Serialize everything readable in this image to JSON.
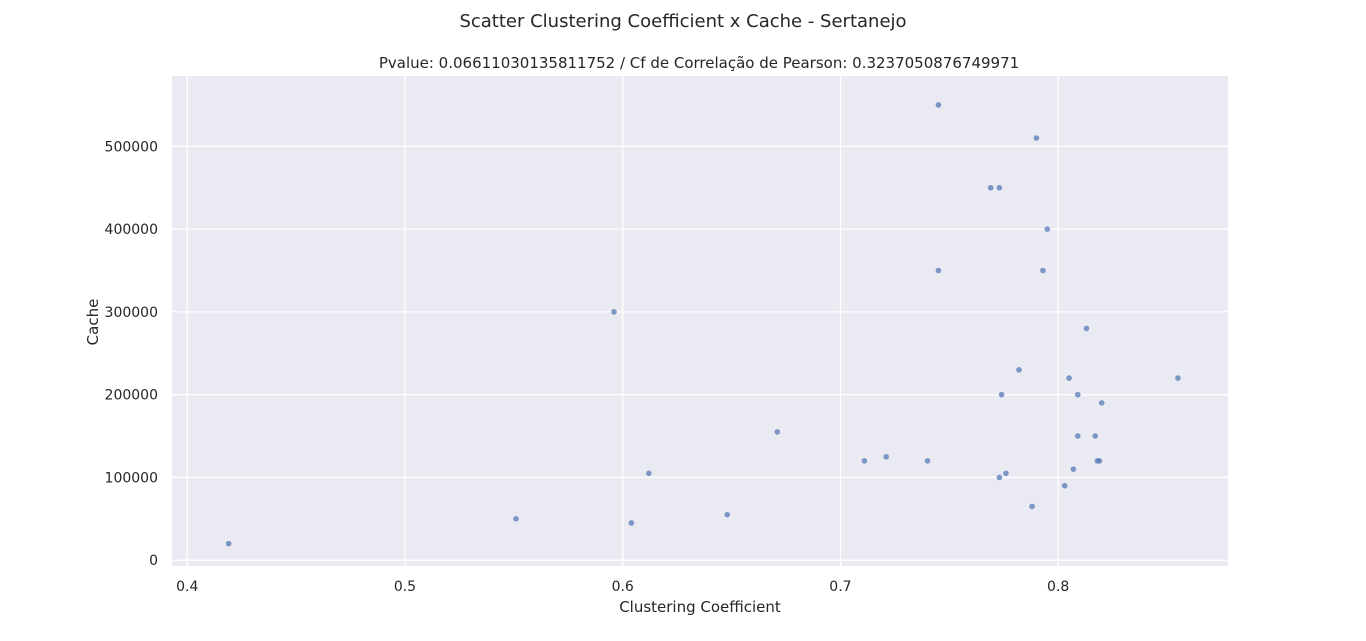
{
  "chart_data": {
    "type": "scatter",
    "title": "Scatter Clustering Coefficient x Cache - Sertanejo",
    "subtitle": "Pvalue: 0.06611030135811752 / Cf de Correlação de Pearson: 0.3237050876749971",
    "xlabel": "Clustering Coefficient",
    "ylabel": "Cache",
    "xlim": [
      0.393,
      0.878
    ],
    "ylim": [
      -7000,
      585000
    ],
    "x_ticks": [
      0.4,
      0.5,
      0.6,
      0.7,
      0.8
    ],
    "x_tick_labels": [
      "0.4",
      "0.5",
      "0.6",
      "0.7",
      "0.8"
    ],
    "y_ticks": [
      0,
      100000,
      200000,
      300000,
      400000,
      500000
    ],
    "y_tick_labels": [
      "0",
      "100000",
      "200000",
      "300000",
      "400000",
      "500000"
    ],
    "grid": true,
    "point_color": "#4c72b0",
    "background_color": "#eaeaf2",
    "points": [
      {
        "x": 0.419,
        "y": 20000
      },
      {
        "x": 0.551,
        "y": 50000
      },
      {
        "x": 0.596,
        "y": 300000
      },
      {
        "x": 0.604,
        "y": 45000
      },
      {
        "x": 0.612,
        "y": 105000
      },
      {
        "x": 0.648,
        "y": 55000
      },
      {
        "x": 0.671,
        "y": 155000
      },
      {
        "x": 0.711,
        "y": 120000
      },
      {
        "x": 0.721,
        "y": 125000
      },
      {
        "x": 0.74,
        "y": 120000
      },
      {
        "x": 0.745,
        "y": 550000
      },
      {
        "x": 0.745,
        "y": 350000
      },
      {
        "x": 0.769,
        "y": 450000
      },
      {
        "x": 0.773,
        "y": 450000
      },
      {
        "x": 0.773,
        "y": 100000
      },
      {
        "x": 0.774,
        "y": 200000
      },
      {
        "x": 0.776,
        "y": 105000
      },
      {
        "x": 0.782,
        "y": 230000
      },
      {
        "x": 0.788,
        "y": 65000
      },
      {
        "x": 0.79,
        "y": 510000
      },
      {
        "x": 0.793,
        "y": 350000
      },
      {
        "x": 0.795,
        "y": 400000
      },
      {
        "x": 0.803,
        "y": 90000
      },
      {
        "x": 0.805,
        "y": 220000
      },
      {
        "x": 0.807,
        "y": 110000
      },
      {
        "x": 0.809,
        "y": 200000
      },
      {
        "x": 0.809,
        "y": 150000
      },
      {
        "x": 0.813,
        "y": 280000
      },
      {
        "x": 0.817,
        "y": 150000
      },
      {
        "x": 0.818,
        "y": 120000
      },
      {
        "x": 0.819,
        "y": 120000
      },
      {
        "x": 0.82,
        "y": 190000
      },
      {
        "x": 0.855,
        "y": 220000
      }
    ]
  }
}
